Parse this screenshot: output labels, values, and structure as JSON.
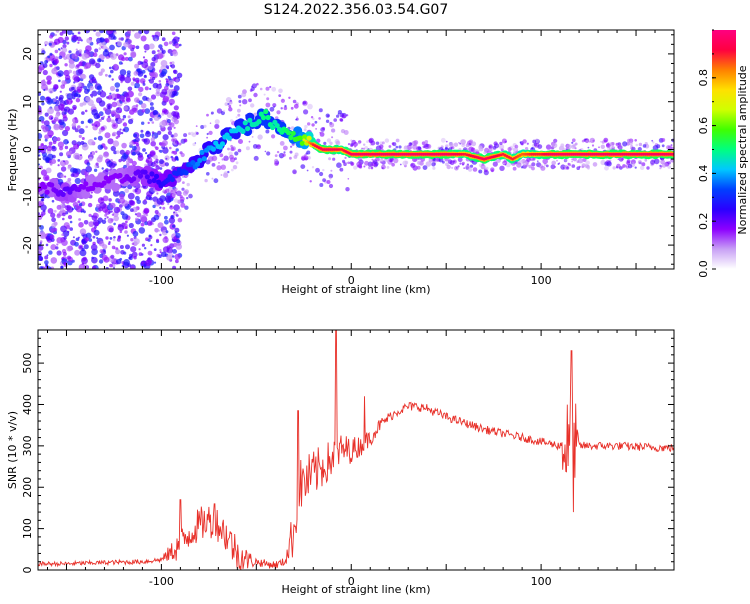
{
  "chart_data": [
    {
      "type": "heatmap",
      "title": "S124.2022.356.03.54.G07",
      "xlabel": "Height of straight line (km)",
      "ylabel": "Frequency (Hz)",
      "xlim": [
        -165,
        170
      ],
      "ylim": [
        -25,
        25
      ],
      "x_ticks": [
        -100,
        0,
        100
      ],
      "y_ticks": [
        -20,
        -10,
        0,
        10,
        20
      ],
      "colorbar": {
        "label": "Normalized spectral amplitude",
        "range": [
          0.0,
          1.0
        ],
        "ticks": [
          0.0,
          0.2,
          0.4,
          0.6,
          0.8
        ],
        "tick_labels": [
          "0.0",
          "0.2",
          "0.4",
          "0.6",
          "0.8"
        ],
        "colormap": [
          "#ffffff",
          "#c8a0f5",
          "#8c00ff",
          "#2a00ff",
          "#0040ff",
          "#00c8ff",
          "#00ff80",
          "#40ff00",
          "#d0ff00",
          "#ffe000",
          "#ff8000",
          "#ff0040",
          "#ff0080"
        ]
      },
      "ridge": {
        "x": [
          -160,
          -150,
          -140,
          -130,
          -120,
          -110,
          -100,
          -95,
          -90,
          -85,
          -80,
          -75,
          -70,
          -65,
          -60,
          -55,
          -50,
          -45,
          -40,
          -35,
          -30,
          -25,
          -20,
          -15,
          -10,
          -5,
          0,
          5,
          10,
          20,
          30,
          40,
          50,
          60,
          70,
          80,
          85,
          90,
          95,
          100,
          105,
          110,
          115,
          120,
          130,
          140,
          150,
          160,
          170
        ],
        "y": [
          -8,
          -9,
          -8,
          -7,
          -6,
          -5,
          -7,
          -6,
          -5,
          -4,
          -2,
          0,
          1,
          3,
          4,
          5,
          6,
          7,
          5,
          4,
          3,
          2,
          1,
          0,
          0,
          0,
          -1,
          -1,
          -1,
          -1,
          -1,
          -1,
          -1,
          -1,
          -2,
          -1,
          -2,
          -1,
          -1,
          -1,
          -1,
          -1,
          -1,
          -1,
          -1,
          -1,
          -1,
          -1,
          -1
        ],
        "amplitude": [
          0.2,
          0.25,
          0.2,
          0.2,
          0.2,
          0.25,
          0.3,
          0.35,
          0.35,
          0.4,
          0.45,
          0.45,
          0.5,
          0.5,
          0.5,
          0.55,
          0.55,
          0.6,
          0.55,
          0.6,
          0.65,
          0.7,
          0.9,
          0.95,
          0.95,
          0.9,
          0.95,
          0.95,
          0.95,
          0.95,
          0.95,
          0.95,
          0.95,
          0.9,
          0.95,
          0.9,
          0.9,
          0.85,
          0.9,
          0.9,
          0.95,
          0.95,
          0.95,
          0.95,
          0.95,
          0.95,
          0.95,
          0.95,
          0.95
        ]
      }
    },
    {
      "type": "line",
      "xlabel": "Height of straight line (km)",
      "ylabel": "SNR (10 * v/v)",
      "xlim": [
        -165,
        170
      ],
      "ylim": [
        0,
        580
      ],
      "x_ticks": [
        -100,
        0,
        100
      ],
      "y_ticks": [
        0,
        100,
        200,
        300,
        400,
        500
      ],
      "color": "#e8312a",
      "envelope": {
        "x": [
          -165,
          -150,
          -130,
          -110,
          -100,
          -90,
          -85,
          -80,
          -75,
          -70,
          -65,
          -60,
          -55,
          -50,
          -45,
          -40,
          -35,
          -30,
          -28,
          -25,
          -20,
          -15,
          -10,
          -5,
          0,
          5,
          10,
          15,
          20,
          25,
          30,
          35,
          40,
          45,
          50,
          60,
          70,
          80,
          90,
          100,
          110,
          112,
          114,
          116,
          117,
          118,
          120,
          130,
          140,
          150,
          160,
          170
        ],
        "y": [
          15,
          15,
          18,
          20,
          25,
          60,
          90,
          110,
          120,
          110,
          80,
          40,
          25,
          20,
          15,
          12,
          20,
          100,
          200,
          210,
          230,
          250,
          270,
          290,
          290,
          300,
          320,
          350,
          370,
          385,
          395,
          395,
          390,
          380,
          370,
          355,
          340,
          330,
          320,
          310,
          300,
          300,
          300,
          290,
          280,
          295,
          300,
          300,
          300,
          298,
          296,
          295
        ]
      },
      "noise_amplitude": {
        "x": [
          -165,
          -100,
          -90,
          -60,
          -50,
          -35,
          -30,
          -20,
          -5,
          5,
          20,
          60,
          110,
          112,
          118,
          120,
          170
        ],
        "a": [
          5,
          6,
          40,
          45,
          10,
          10,
          70,
          60,
          40,
          25,
          12,
          10,
          10,
          120,
          120,
          10,
          10
        ]
      },
      "spikes": [
        {
          "x": -90,
          "y": 170
        },
        {
          "x": -72,
          "y": 160
        },
        {
          "x": -28,
          "y": 385
        },
        {
          "x": -8,
          "y": 580
        },
        {
          "x": 7,
          "y": 420
        },
        {
          "x": 116,
          "y": 530
        },
        {
          "x": 117,
          "y": 140
        }
      ]
    }
  ]
}
